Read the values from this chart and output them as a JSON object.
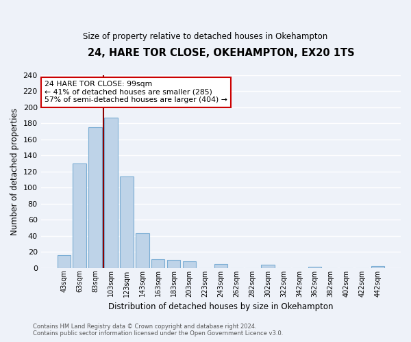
{
  "title": "24, HARE TOR CLOSE, OKEHAMPTON, EX20 1TS",
  "subtitle": "Size of property relative to detached houses in Okehampton",
  "xlabel": "Distribution of detached houses by size in Okehampton",
  "ylabel": "Number of detached properties",
  "bar_labels": [
    "43sqm",
    "63sqm",
    "83sqm",
    "103sqm",
    "123sqm",
    "143sqm",
    "163sqm",
    "183sqm",
    "203sqm",
    "223sqm",
    "243sqm",
    "262sqm",
    "282sqm",
    "302sqm",
    "322sqm",
    "342sqm",
    "362sqm",
    "382sqm",
    "402sqm",
    "422sqm",
    "442sqm"
  ],
  "bar_values": [
    16,
    130,
    175,
    187,
    114,
    43,
    11,
    10,
    8,
    0,
    5,
    0,
    0,
    4,
    0,
    0,
    1,
    0,
    0,
    0,
    2
  ],
  "bar_color": "#bed3e8",
  "bar_edge_color": "#7aadd4",
  "vline_color": "#8b0000",
  "annotation_line1": "24 HARE TOR CLOSE: 99sqm",
  "annotation_line2": "← 41% of detached houses are smaller (285)",
  "annotation_line3": "57% of semi-detached houses are larger (404) →",
  "annotation_box_color": "white",
  "annotation_box_edge": "#cc0000",
  "ylim": [
    0,
    240
  ],
  "yticks": [
    0,
    20,
    40,
    60,
    80,
    100,
    120,
    140,
    160,
    180,
    200,
    220,
    240
  ],
  "footer_line1": "Contains HM Land Registry data © Crown copyright and database right 2024.",
  "footer_line2": "Contains public sector information licensed under the Open Government Licence v3.0.",
  "bg_color": "#eef2f9",
  "grid_color": "#ffffff",
  "plot_bg_color": "#eef2f9"
}
